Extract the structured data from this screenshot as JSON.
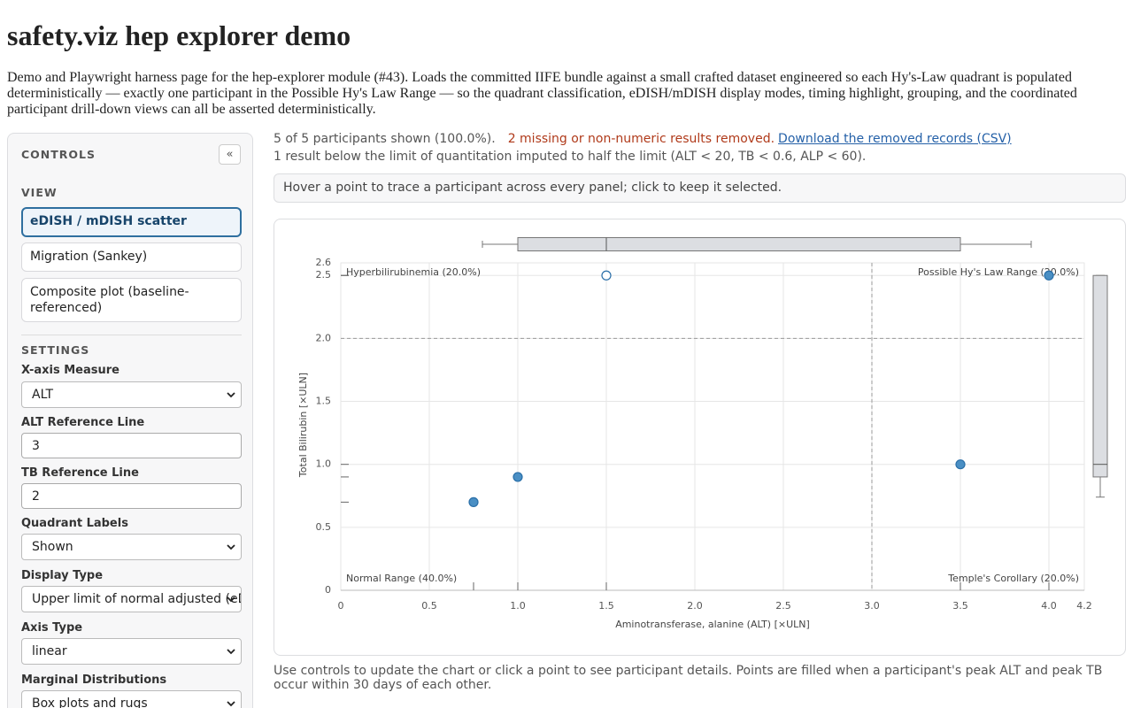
{
  "header": {
    "title": "safety.viz hep explorer demo",
    "description": "Demo and Playwright harness page for the hep-explorer module (#43). Loads the committed IIFE bundle against a small crafted dataset engineered so each Hy's-Law quadrant is populated deterministically — exactly one participant in the Possible Hy's Law Range — so the quadrant classification, eDISH/mDISH display modes, timing highlight, grouping, and the coordinated participant drill-down views can all be asserted deterministically."
  },
  "controls": {
    "title": "CONTROLS",
    "collapse": "«",
    "view": {
      "heading": "VIEW",
      "options": [
        "eDISH / mDISH scatter",
        "Migration (Sankey)",
        "Composite plot (baseline-referenced)"
      ],
      "selected": 0
    },
    "settings": {
      "heading": "SETTINGS",
      "fields": [
        {
          "label": "X-axis Measure",
          "value": "ALT"
        },
        {
          "label": "ALT Reference Line"
        },
        {
          "label": "TB Reference Line"
        },
        {
          "label": "Quadrant Labels",
          "value": "Shown"
        },
        {
          "label": "Display Type",
          "value": "Upper limit of normal adjusted (eDISH)"
        },
        {
          "label": "Axis Type",
          "value": "linear"
        },
        {
          "label": "Marginal Distributions",
          "value": "Box plots and rugs"
        }
      ]
    }
  },
  "status": {
    "shown": "5 of 5 participants shown (100.0%).",
    "removed": "2 missing or non-numeric results removed.",
    "download": "Download the removed records (CSV)",
    "imputed": "1 result below the limit of quantitation imputed to half the limit (ALT < 20, TB < 0.6, ALP < 60)."
  },
  "hint": "Hover a point to trace a participant across every panel; click to keep it selected.",
  "footer": "Use controls to update the chart or click a point to see participant details. Points are filled when a participant's peak ALT and peak TB occur within 30 days of each other.",
  "chart_data": {
    "type": "scatter",
    "x_label": "Aminotransferase, alanine (ALT) [×ULN]",
    "y_label": "Total Bilirubin [×ULN]",
    "x": [
      0.75,
      1.0,
      1.5,
      3.5,
      4.0
    ],
    "values": [
      0.7,
      0.9,
      2.5,
      1.0,
      2.5
    ],
    "filled": [
      true,
      true,
      false,
      true,
      true
    ],
    "color": "#4a8fc4",
    "xlim": [
      0,
      4.2
    ],
    "ylim": [
      0,
      2.6
    ],
    "xticks": [
      0,
      0.5,
      {
        "value": 1,
        "label": "1.0"
      },
      1.5,
      {
        "value": 2,
        "label": "2.0"
      },
      2.5,
      {
        "value": 3,
        "label": "3.0"
      },
      3.5,
      {
        "value": 4,
        "label": "4.0"
      },
      4.2
    ],
    "yticks": [
      0,
      0.5,
      {
        "value": 1,
        "label": "1.0"
      },
      1.5,
      {
        "value": 2,
        "label": "2.0"
      },
      2.5,
      2.6
    ],
    "grid": true,
    "x_reference": 3,
    "y_reference": 2,
    "annotations": [
      {
        "text": "Hyperbilirubinemia (20.0%)",
        "position": "top-left"
      },
      {
        "text": "Possible Hy's Law Range (20.0%)",
        "position": "top-right"
      },
      {
        "text": "Normal Range (40.0%)",
        "position": "bottom-left"
      },
      {
        "text": "Temple's Corollary (20.0%)",
        "position": "bottom-right"
      }
    ],
    "x_box": {
      "whisker_low": 0.8,
      "q1": 1.0,
      "median": 1.5,
      "q3": 3.5,
      "whisker_high": 3.9
    },
    "y_box": {
      "whisker_low": 0.74,
      "q1": 0.9,
      "median": 1.0,
      "q3": 2.5,
      "whisker_high": 2.5
    },
    "rugs": true
  }
}
